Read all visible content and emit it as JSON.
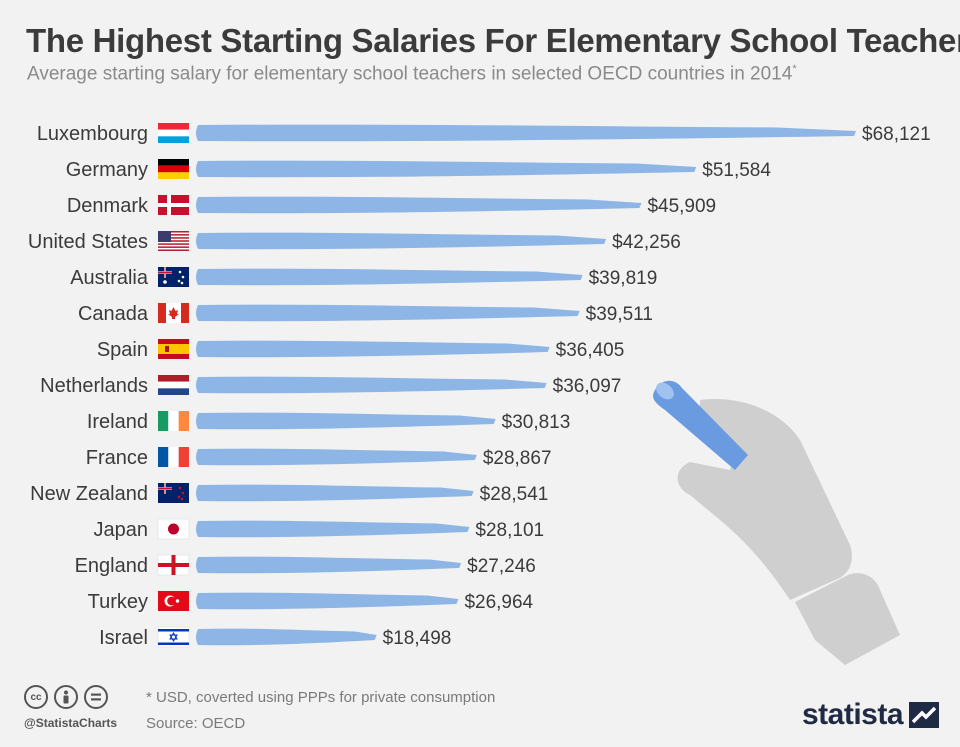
{
  "title": "The Highest Starting Salaries For Elementary School Teachers",
  "subtitle": "Average starting salary for elementary school teachers in selected OECD countries in 2014",
  "subtitle_mark": "*",
  "footnote": "* USD, coverted using PPPs for private consumption",
  "source": "Source: OECD",
  "handle": "@StatistaCharts",
  "brand": "statista",
  "colors": {
    "bar": "#8db6e6",
    "text": "#3b3b3b",
    "hand": "#cfcfcf",
    "chalk": "#6a9be0"
  },
  "chart_data": {
    "type": "bar",
    "orientation": "horizontal",
    "categories": [
      "Luxembourg",
      "Germany",
      "Denmark",
      "United States",
      "Australia",
      "Canada",
      "Spain",
      "Netherlands",
      "Ireland",
      "France",
      "New Zealand",
      "Japan",
      "England",
      "Turkey",
      "Israel"
    ],
    "values": [
      68121,
      51584,
      45909,
      42256,
      39819,
      39511,
      36405,
      36097,
      30813,
      28867,
      28541,
      28101,
      27246,
      26964,
      18498
    ],
    "labels": [
      "$68,121",
      "$51,584",
      "$45,909",
      "$42,256",
      "$39,819",
      "$39,511",
      "$36,405",
      "$36,097",
      "$30,813",
      "$28,867",
      "$28,541",
      "$28,101",
      "$27,246",
      "$26,964",
      "$18,498"
    ],
    "flags": [
      "luxembourg-flag",
      "germany-flag",
      "denmark-flag",
      "united-states-flag",
      "australia-flag",
      "canada-flag",
      "spain-flag",
      "netherlands-flag",
      "ireland-flag",
      "france-flag",
      "new-zealand-flag",
      "japan-flag",
      "england-flag",
      "turkey-flag",
      "israel-flag"
    ],
    "xlim": [
      0,
      68121
    ],
    "grid": false,
    "legend": "none"
  }
}
